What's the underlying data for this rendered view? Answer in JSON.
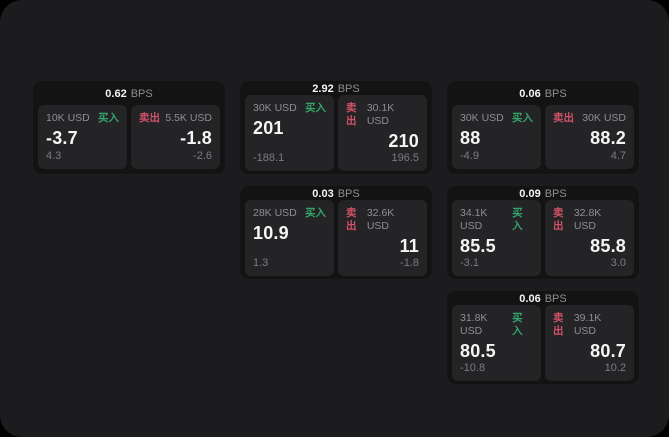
{
  "labels": {
    "bps_suffix": "BPS",
    "buy": "买入",
    "sell": "卖出"
  },
  "theme": {
    "outer_bg": "#000000",
    "page_bg": "#1c1c1e",
    "card_bg": "#131314",
    "panel_bg": "#242427",
    "text_primary": "#f5f5f5",
    "text_secondary": "#8e8e93",
    "text_dim": "#7c7c80",
    "buy_color": "#34a46a",
    "sell_color": "#cf5266"
  },
  "cards": [
    {
      "grid": {
        "col": 1,
        "row": 1
      },
      "bps": "0.62",
      "buy": {
        "size": "10K USD",
        "value": "-3.7",
        "sub": "4.3"
      },
      "sell": {
        "size": "5.5K USD",
        "value": "-1.8",
        "sub": "-2.6"
      }
    },
    {
      "grid": {
        "col": 2,
        "row": 1
      },
      "bps": "2.92",
      "buy": {
        "size": "30K USD",
        "value": "201",
        "sub": "-188.1"
      },
      "sell": {
        "size": "30.1K USD",
        "value": "210",
        "sub": "196.5"
      }
    },
    {
      "grid": {
        "col": 3,
        "row": 1
      },
      "bps": "0.06",
      "buy": {
        "size": "30K USD",
        "value": "88",
        "sub": "-4.9"
      },
      "sell": {
        "size": "30K USD",
        "value": "88.2",
        "sub": "4.7"
      }
    },
    {
      "grid": {
        "col": 2,
        "row": 2
      },
      "bps": "0.03",
      "buy": {
        "size": "28K USD",
        "value": "10.9",
        "sub": "1.3"
      },
      "sell": {
        "size": "32.6K USD",
        "value": "11",
        "sub": "-1.8"
      }
    },
    {
      "grid": {
        "col": 3,
        "row": 2
      },
      "bps": "0.09",
      "buy": {
        "size": "34.1K USD",
        "value": "85.5",
        "sub": "-3.1"
      },
      "sell": {
        "size": "32.8K USD",
        "value": "85.8",
        "sub": "3.0"
      }
    },
    {
      "grid": {
        "col": 3,
        "row": 3
      },
      "bps": "0.06",
      "buy": {
        "size": "31.8K USD",
        "value": "80.5",
        "sub": "-10.8"
      },
      "sell": {
        "size": "39.1K USD",
        "value": "80.7",
        "sub": "10.2"
      }
    }
  ]
}
